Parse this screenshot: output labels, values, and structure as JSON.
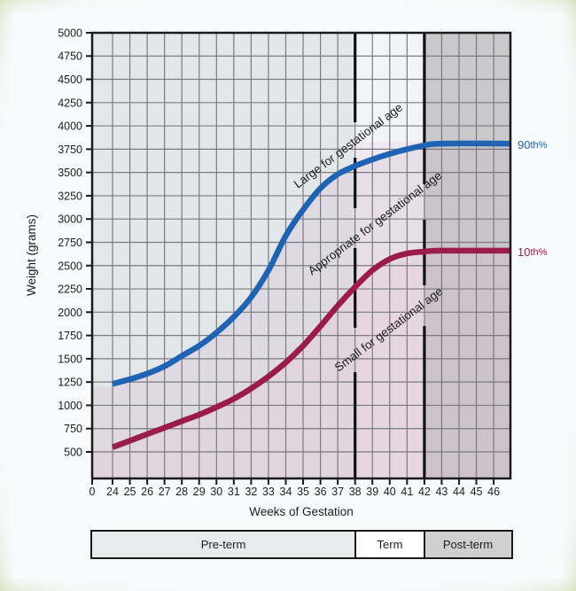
{
  "chart_data": {
    "type": "line",
    "title": "",
    "xlabel": "Weeks of Gestation",
    "ylabel": "Weight (grams)",
    "x_ticks": [
      "0",
      "24",
      "25",
      "26",
      "27",
      "28",
      "29",
      "30",
      "31",
      "32",
      "33",
      "34",
      "35",
      "36",
      "37",
      "38",
      "39",
      "40",
      "41",
      "42",
      "43",
      "44",
      "45",
      "46"
    ],
    "y_ticks": [
      "500",
      "750",
      "1000",
      "1250",
      "1500",
      "1750",
      "2000",
      "2250",
      "2500",
      "2750",
      "3000",
      "3250",
      "3500",
      "3750",
      "4000",
      "4250",
      "4500",
      "4750",
      "5000"
    ],
    "ylim": [
      500,
      5000
    ],
    "xlim": [
      24,
      47
    ],
    "grid": true,
    "series": [
      {
        "name": "90th%",
        "color": "#1f63b4",
        "x": [
          24,
          25,
          26,
          27,
          28,
          29,
          30,
          31,
          32,
          33,
          34,
          35,
          36,
          37,
          38,
          39,
          40,
          41,
          42,
          43,
          47
        ],
        "values": [
          1230,
          1280,
          1340,
          1420,
          1530,
          1640,
          1780,
          1950,
          2160,
          2450,
          2820,
          3100,
          3330,
          3480,
          3570,
          3640,
          3700,
          3750,
          3790,
          3810,
          3810
        ]
      },
      {
        "name": "10th%",
        "color": "#9b1b4f",
        "x": [
          24,
          25,
          26,
          27,
          28,
          29,
          30,
          31,
          32,
          33,
          34,
          35,
          36,
          37,
          38,
          39,
          40,
          41,
          42,
          43,
          47
        ],
        "values": [
          550,
          620,
          690,
          760,
          830,
          900,
          980,
          1070,
          1180,
          1310,
          1460,
          1640,
          1850,
          2070,
          2270,
          2450,
          2570,
          2630,
          2650,
          2660,
          2660
        ]
      }
    ],
    "annotations": [
      {
        "text": "Large for gestational age",
        "region": "above 90th percentile"
      },
      {
        "text": "Appropriate for gestational age",
        "region": "between 10th and 90th percentile"
      },
      {
        "text": "Small for gestational age",
        "region": "below 10th percentile"
      }
    ],
    "vertical_markers": [
      {
        "x": 38,
        "style": "dashed"
      },
      {
        "x": 42,
        "style": "dashed"
      }
    ],
    "periods": [
      {
        "label": "Pre-term",
        "from": 24,
        "to": 38,
        "color": "#e8eaec"
      },
      {
        "label": "Term",
        "from": 38,
        "to": 42,
        "color": "#ffffff"
      },
      {
        "label": "Post-term",
        "from": 42,
        "to": 47,
        "color": "#cfcfcf"
      }
    ]
  },
  "labels": {
    "y_axis_title": "Weight (grams)",
    "x_axis_title": "Weeks of Gestation",
    "large": "Large for gestational age",
    "appropriate": "Appropriate for gestational age",
    "small": "Small for gestational age",
    "p90_num": "90",
    "p90_sup": "th%",
    "p10_num": "10",
    "p10_sup": "th%",
    "period_preterm": "Pre-term",
    "period_term": "Term",
    "period_postterm": "Post-term"
  },
  "colors": {
    "p90": "#1f63b4",
    "p10": "#9b1b4f"
  }
}
